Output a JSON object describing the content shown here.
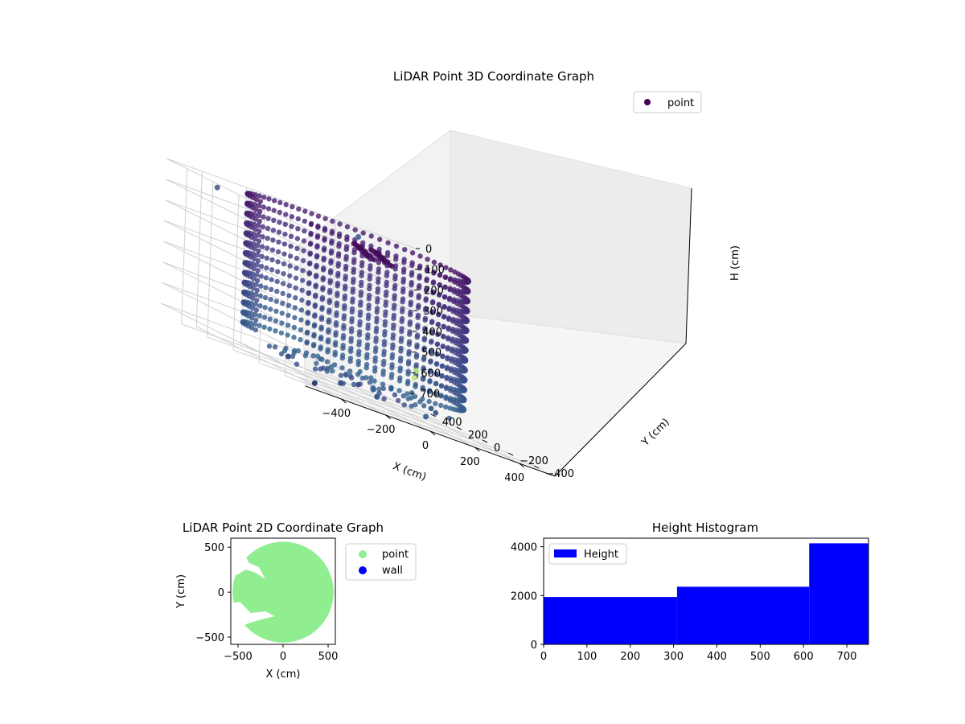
{
  "chart_data": [
    {
      "type": "scatter3d",
      "title": "LiDAR Point 3D Coordinate Graph",
      "xlabel": "X (cm)",
      "ylabel": "Y (cm)",
      "zlabel": "H (cm)",
      "xticks": [
        -400,
        -200,
        0,
        200,
        400
      ],
      "yticks": [
        -400,
        -200,
        0,
        200,
        400
      ],
      "zticks": [
        0,
        100,
        200,
        300,
        400,
        500,
        600,
        700
      ],
      "xlim": [
        -560,
        560
      ],
      "ylim": [
        -560,
        560
      ],
      "zlim": [
        0,
        750
      ],
      "z_inverted": true,
      "grid": true,
      "legend": {
        "placement": "top-right",
        "entries": [
          {
            "label": "point",
            "color": "#440154"
          }
        ]
      },
      "colormap": "viridis",
      "structure": {
        "wall_radius": 430,
        "wall_height_range": [
          0,
          620
        ],
        "wall_angle_range_deg": [
          -150,
          175
        ],
        "ring_count": 14
      },
      "outliers": [
        {
          "x": -540,
          "y": 200,
          "h": 20,
          "color": "#5b6d9a"
        },
        {
          "x": 280,
          "y": 520,
          "h": 40,
          "color": "#4f6b99"
        },
        {
          "x": -560,
          "y": -420,
          "h": 650,
          "color": "#3b4e86"
        },
        {
          "x": -520,
          "y": -560,
          "h": 720,
          "color": "#31416f"
        },
        {
          "x": 430,
          "y": 300,
          "h": 560,
          "color": "#b0e07a"
        },
        {
          "x": 440,
          "y": 330,
          "h": 600,
          "color": "#c9e88e"
        },
        {
          "x": 60,
          "y": -420,
          "h": 700,
          "color": "#3d6b94"
        },
        {
          "x": -300,
          "y": -380,
          "h": 690,
          "color": "#37568a"
        },
        {
          "x": -90,
          "y": -300,
          "h": 700,
          "color": "#335a8a"
        }
      ]
    },
    {
      "type": "scatter",
      "title": "LiDAR Point 2D Coordinate Graph",
      "xlabel": "X (cm)",
      "ylabel": "Y (cm)",
      "xticks": [
        -500,
        0,
        500
      ],
      "yticks": [
        -500,
        0,
        500
      ],
      "xlim": [
        -580,
        580
      ],
      "ylim": [
        -580,
        600
      ],
      "region": {
        "shape": "disc",
        "radius": 560,
        "center": [
          0,
          0
        ]
      },
      "legend": {
        "placement": "outside-right",
        "entries": [
          {
            "label": "point",
            "color": "#90ee90"
          },
          {
            "label": "wall",
            "color": "#0000ff"
          }
        ]
      }
    },
    {
      "type": "histogram",
      "title": "Height Histogram",
      "xticks": [
        0,
        100,
        200,
        300,
        400,
        500,
        600,
        700
      ],
      "yticks": [
        0,
        2000,
        4000
      ],
      "xlim": [
        0,
        750
      ],
      "ylim": [
        0,
        4350
      ],
      "bins": [
        {
          "from": 0,
          "to": 308,
          "count": 1940
        },
        {
          "from": 308,
          "to": 613,
          "count": 2360
        },
        {
          "from": 613,
          "to": 750,
          "count": 4140
        }
      ],
      "color": "#0000ff",
      "legend": {
        "placement": "top-left",
        "entries": [
          {
            "label": "Height",
            "color": "#0000ff"
          }
        ]
      }
    }
  ]
}
